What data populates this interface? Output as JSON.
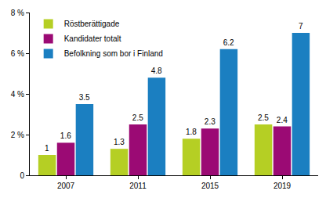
{
  "chart_data": {
    "type": "bar",
    "categories": [
      "2007",
      "2011",
      "2015",
      "2019"
    ],
    "series": [
      {
        "name": "Röstberättigade",
        "color": "#b5cf24",
        "values": [
          1,
          1.3,
          1.8,
          2.5
        ]
      },
      {
        "name": "Kandidater totalt",
        "color": "#9b0a74",
        "values": [
          1.6,
          2.5,
          2.3,
          2.4
        ]
      },
      {
        "name": "Befolkning som bor i Finland",
        "color": "#1b7fc1",
        "values": [
          3.5,
          4.8,
          6.2,
          7
        ]
      }
    ],
    "ylim": [
      0,
      8
    ],
    "yticks": [
      0,
      {
        "value": 2,
        "label": "2 %"
      },
      {
        "value": 4,
        "label": "4 %"
      },
      {
        "value": 6,
        "label": "6 %"
      },
      {
        "value": 8,
        "label": "8 %"
      }
    ],
    "grid": false,
    "legend": "upper left",
    "data_labels": true
  }
}
